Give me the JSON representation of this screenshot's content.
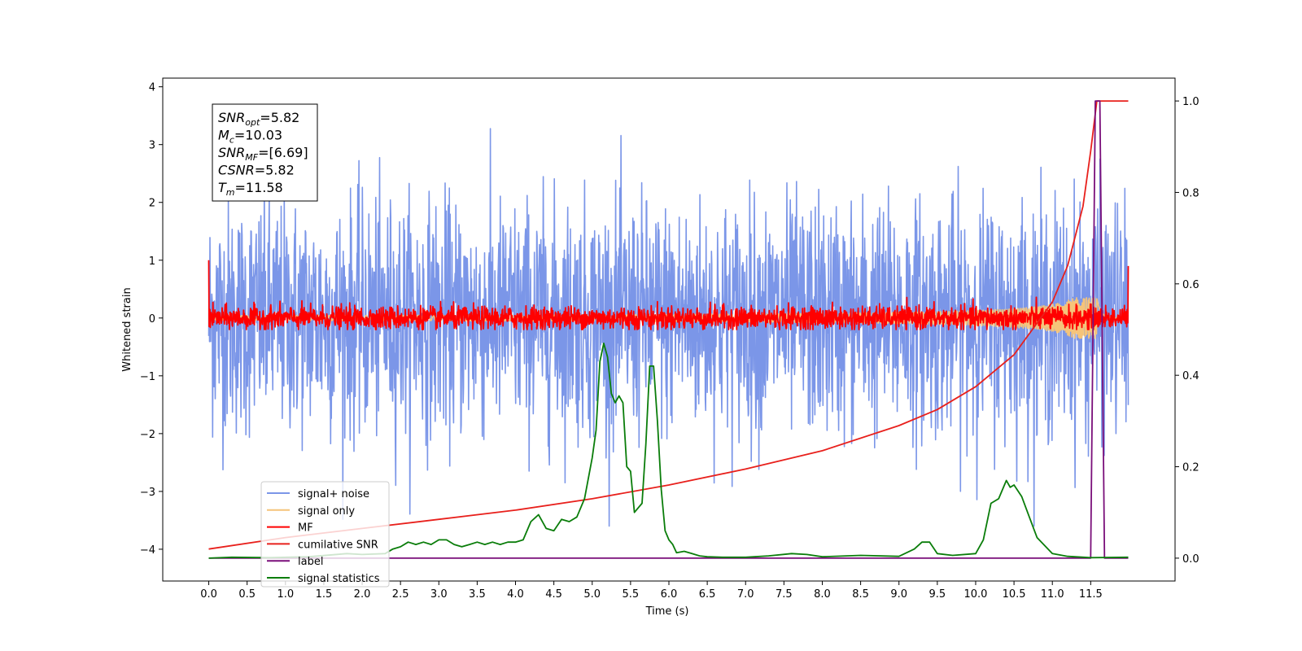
{
  "chart_data": {
    "type": "line",
    "xlabel": "Time (s)",
    "ylabel": "Whitened strain",
    "xlim": [
      -0.6,
      12.6
    ],
    "ylim": [
      -4.55,
      4.15
    ],
    "y2lim": [
      -0.05,
      1.05
    ],
    "x_ticks": [
      "0.0",
      "0.5",
      "1.0",
      "1.5",
      "2.0",
      "2.5",
      "3.0",
      "3.5",
      "4.0",
      "4.5",
      "5.0",
      "5.5",
      "6.0",
      "6.5",
      "7.0",
      "7.5",
      "8.0",
      "8.5",
      "9.0",
      "9.5",
      "10.0",
      "10.5",
      "11.0",
      "11.5"
    ],
    "y_ticks": [
      "4",
      "3",
      "2",
      "1",
      "0",
      "−1",
      "−2",
      "−3",
      "−4"
    ],
    "y2_ticks": [
      "1.0",
      "0.8",
      "0.6",
      "0.4",
      "0.2",
      "0.0"
    ],
    "annotation": [
      {
        "base": "SNR",
        "sub": "opt",
        "rest": "=5.82"
      },
      {
        "base": "M",
        "sub": "c",
        "rest": "=10.03"
      },
      {
        "base": "SNR",
        "sub": "MF",
        "rest": "=[6.69]"
      },
      {
        "base": "CSNR",
        "sub": "",
        "rest": "=5.82"
      },
      {
        "base": "T",
        "sub": "m",
        "rest": "=11.58"
      }
    ],
    "legend": {
      "placement": "lower-left",
      "entries": [
        "signal+ noise",
        "signal only",
        "MF",
        "cumilative SNR",
        "label",
        "signal statistics"
      ]
    },
    "series": [
      {
        "name": "signal+ noise",
        "axis": "left",
        "color": "#7b96e8",
        "kind": "noise",
        "t_start": 0.0,
        "t_end": 11.99,
        "sigma": 1.0,
        "peak_max": 3.75,
        "peak_min": -3.6
      },
      {
        "name": "signal only",
        "axis": "left",
        "color": "#f5c47a",
        "kind": "chirp",
        "t_start": 0.0,
        "t_end": 11.99,
        "peak_amp": 0.35,
        "peak_t": 11.58
      },
      {
        "name": "MF",
        "axis": "left",
        "color": "#ff0000",
        "kind": "noise",
        "t_start": 0.0,
        "t_end": 11.99,
        "sigma": 0.1,
        "peak_max": 0.45,
        "peak_min": -0.2,
        "start_value": 1.0,
        "end_value": 0.9
      },
      {
        "name": "cumilative SNR",
        "axis": "right",
        "color": "#e8201c",
        "x": [
          0.0,
          1.0,
          2.0,
          3.0,
          4.0,
          5.0,
          6.0,
          7.0,
          8.0,
          9.0,
          9.5,
          10.0,
          10.5,
          11.0,
          11.2,
          11.4,
          11.5,
          11.58,
          11.99
        ],
        "y": [
          0.02,
          0.045,
          0.065,
          0.085,
          0.105,
          0.13,
          0.16,
          0.195,
          0.235,
          0.29,
          0.325,
          0.375,
          0.445,
          0.56,
          0.64,
          0.77,
          0.89,
          1.0,
          1.0
        ]
      },
      {
        "name": "label",
        "axis": "right",
        "color": "#7a0f7a",
        "x": [
          0.0,
          11.5,
          11.56,
          11.62,
          11.68,
          11.99
        ],
        "y": [
          0.0,
          0.0,
          1.0,
          1.0,
          0.0,
          0.0
        ]
      },
      {
        "name": "signal statistics",
        "axis": "right",
        "color": "#0a7d0a",
        "x": [
          0.0,
          0.3,
          0.8,
          1.3,
          1.8,
          2.0,
          2.3,
          2.4,
          2.5,
          2.6,
          2.7,
          2.8,
          2.9,
          3.0,
          3.1,
          3.2,
          3.3,
          3.4,
          3.5,
          3.6,
          3.7,
          3.8,
          3.9,
          4.0,
          4.1,
          4.2,
          4.3,
          4.4,
          4.5,
          4.6,
          4.7,
          4.8,
          4.9,
          5.0,
          5.05,
          5.1,
          5.15,
          5.2,
          5.25,
          5.3,
          5.35,
          5.4,
          5.45,
          5.5,
          5.55,
          5.6,
          5.65,
          5.7,
          5.75,
          5.8,
          5.85,
          5.9,
          5.95,
          6.0,
          6.05,
          6.1,
          6.2,
          6.3,
          6.4,
          6.5,
          6.7,
          7.0,
          7.3,
          7.6,
          7.8,
          8.0,
          8.5,
          9.0,
          9.2,
          9.3,
          9.4,
          9.5,
          9.7,
          10.0,
          10.1,
          10.2,
          10.3,
          10.4,
          10.45,
          10.5,
          10.6,
          10.7,
          10.8,
          11.0,
          11.2,
          11.5,
          11.99
        ],
        "y": [
          0.0,
          0.002,
          0.001,
          0.003,
          0.01,
          0.008,
          0.01,
          0.02,
          0.025,
          0.035,
          0.03,
          0.035,
          0.03,
          0.04,
          0.04,
          0.03,
          0.025,
          0.03,
          0.035,
          0.03,
          0.035,
          0.03,
          0.035,
          0.035,
          0.04,
          0.08,
          0.095,
          0.065,
          0.06,
          0.085,
          0.08,
          0.09,
          0.13,
          0.22,
          0.28,
          0.43,
          0.47,
          0.44,
          0.36,
          0.34,
          0.355,
          0.34,
          0.2,
          0.19,
          0.1,
          0.11,
          0.12,
          0.25,
          0.42,
          0.42,
          0.3,
          0.15,
          0.06,
          0.04,
          0.03,
          0.012,
          0.015,
          0.01,
          0.005,
          0.003,
          0.002,
          0.002,
          0.005,
          0.01,
          0.008,
          0.003,
          0.006,
          0.004,
          0.02,
          0.035,
          0.035,
          0.01,
          0.006,
          0.01,
          0.04,
          0.12,
          0.13,
          0.17,
          0.155,
          0.16,
          0.135,
          0.09,
          0.045,
          0.01,
          0.004,
          0.001,
          0.002
        ]
      }
    ]
  }
}
